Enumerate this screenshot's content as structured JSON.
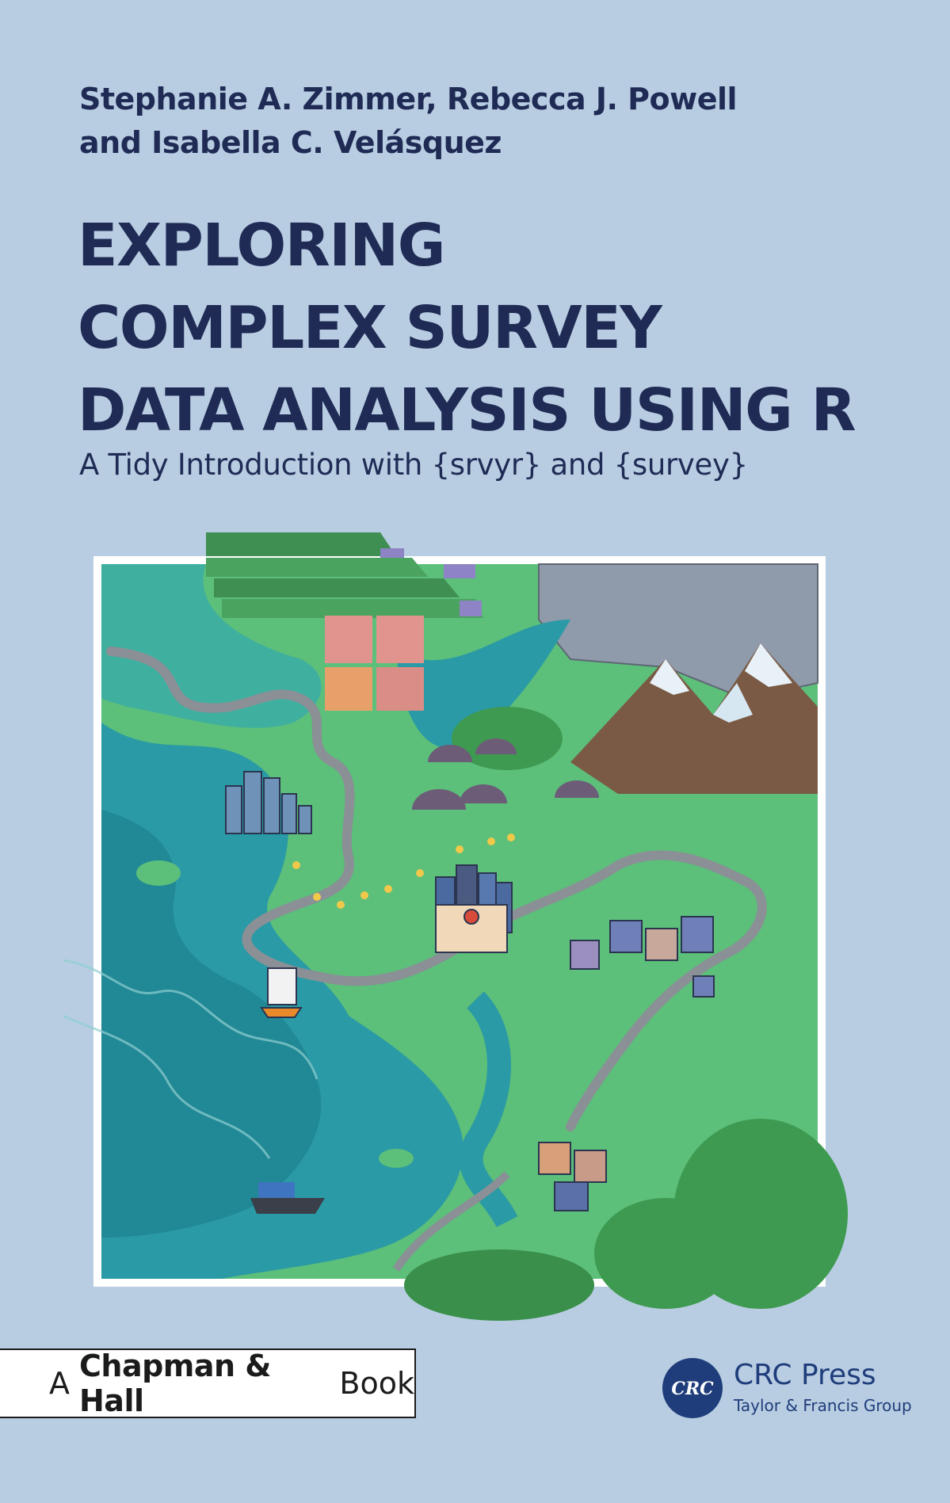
{
  "authors": {
    "line1": "Stephanie A. Zimmer, Rebecca J. Powell",
    "line2": "and Isabella C. Velásquez"
  },
  "title": {
    "line1": "EXPLORING",
    "line2": "COMPLEX SURVEY",
    "line3": "DATA ANALYSIS USING R"
  },
  "subtitle": "A Tidy Introduction with {srvyr} and {survey}",
  "publisher_box": {
    "prefix": "A",
    "name": "Chapman & Hall",
    "suffix": "Book"
  },
  "crc": {
    "logo_text": "CRC",
    "name": "CRC Press",
    "subtitle": "Taylor & Francis Group"
  },
  "colors": {
    "background": "#b8cde2",
    "text": "#1f2b55",
    "land": "#5cbf7a",
    "water": "#2a9aa6"
  }
}
